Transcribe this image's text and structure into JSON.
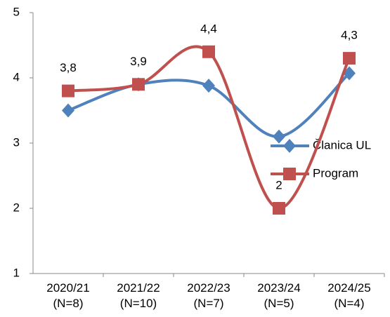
{
  "chart_data": {
    "type": "line",
    "categories": [
      "2020/21\n(N=8)",
      "2021/22\n(N=10)",
      "2022/23\n(N=7)",
      "2023/24\n(N=5)",
      "2024/25\n(N=4)"
    ],
    "series": [
      {
        "name": "Članica UL",
        "color": "#4f81bd",
        "marker": "diamond",
        "values": [
          3.5,
          3.9,
          3.88,
          3.1,
          4.07
        ]
      },
      {
        "name": "Program",
        "color": "#c0504d",
        "marker": "square",
        "values": [
          3.8,
          3.9,
          4.4,
          2,
          4.3
        ],
        "value_labels": [
          "3,8",
          "3,9",
          "4,4",
          "2",
          "4,3"
        ]
      }
    ],
    "ylim": [
      1,
      5
    ],
    "yticks": [
      1,
      2,
      3,
      4,
      5
    ],
    "grid": false,
    "smooth": true,
    "legend": "right"
  }
}
